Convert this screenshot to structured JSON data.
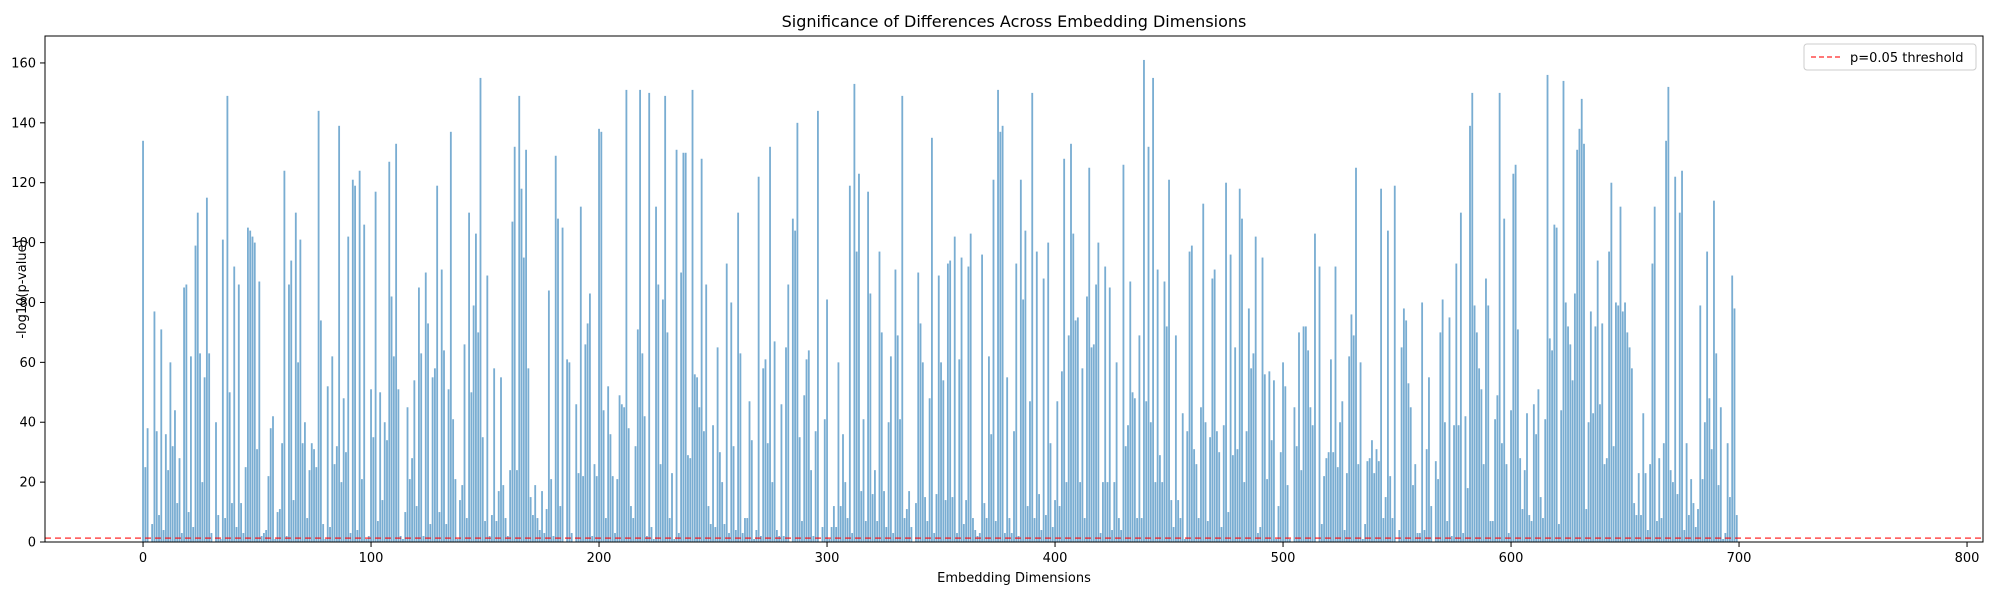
{
  "chart_data": {
    "type": "bar",
    "title": "Significance of Differences Across Embedding Dimensions",
    "xlabel": "Embedding Dimensions",
    "ylabel": "-log10(p-value)",
    "xlim": [
      -43,
      807
    ],
    "ylim": [
      0,
      169
    ],
    "x_ticks": [
      0,
      100,
      200,
      300,
      400,
      500,
      600,
      700,
      800
    ],
    "y_ticks": [
      0,
      20,
      40,
      60,
      80,
      100,
      120,
      140,
      160
    ],
    "grid": false,
    "legend_position": "top-right",
    "n_bars": 768,
    "bar_color": "#1f77b4",
    "bar_alpha": 0.6,
    "threshold": {
      "label": "p=0.05 threshold",
      "value": 1.301,
      "color": "#ff0000",
      "style": "dashed"
    },
    "values": [
      134,
      25,
      38,
      0,
      6,
      77,
      37,
      9,
      71,
      4,
      36,
      24,
      60,
      32,
      44,
      13,
      28,
      3,
      85,
      86,
      10,
      62,
      5,
      99,
      110,
      63,
      20,
      55,
      115,
      63,
      3,
      0,
      40,
      9,
      1,
      101,
      8,
      149,
      50,
      13,
      92,
      5,
      86,
      13,
      3,
      25,
      105,
      104,
      102,
      100,
      31,
      87,
      2,
      3,
      4,
      22,
      38,
      42,
      1,
      10,
      11,
      33,
      124,
      2,
      86,
      94,
      14,
      110,
      60,
      101,
      33,
      40,
      8,
      24,
      33,
      31,
      25,
      144,
      74,
      6,
      1,
      52,
      5,
      62,
      26,
      32,
      139,
      20,
      48,
      30,
      102,
      3,
      121,
      119,
      4,
      124,
      21,
      106,
      1,
      2,
      51,
      35,
      117,
      7,
      50,
      14,
      40,
      34,
      127,
      82,
      62,
      133,
      51,
      2,
      1,
      10,
      45,
      21,
      28,
      54,
      12,
      85,
      63,
      2,
      90,
      73,
      6,
      55,
      58,
      119,
      10,
      91,
      64,
      6,
      51,
      137,
      41,
      21,
      1,
      14,
      19,
      66,
      8,
      110,
      50,
      79,
      103,
      70,
      155,
      35,
      7,
      89,
      2,
      9,
      58,
      7,
      17,
      55,
      19,
      8,
      2,
      24,
      107,
      132,
      24,
      149,
      118,
      95,
      131,
      58,
      15,
      9,
      19,
      8,
      4,
      17,
      3,
      11,
      84,
      21,
      2,
      129,
      108,
      12,
      105,
      0,
      61,
      60,
      3,
      0,
      46,
      23,
      112,
      22,
      66,
      73,
      83,
      2,
      26,
      22,
      138,
      137,
      44,
      8,
      52,
      36,
      22,
      3,
      21,
      49,
      46,
      45,
      151,
      38,
      12,
      8,
      32,
      71,
      151,
      63,
      42,
      2,
      150,
      5,
      1,
      112,
      86,
      26,
      81,
      149,
      70,
      8,
      23,
      1,
      131,
      3,
      90,
      130,
      130,
      29,
      28,
      151,
      56,
      55,
      45,
      128,
      37,
      86,
      12,
      6,
      39,
      5,
      65,
      30,
      20,
      6,
      93,
      3,
      80,
      32,
      4,
      110,
      63,
      3,
      8,
      8,
      47,
      34,
      1,
      4,
      122,
      2,
      58,
      61,
      33,
      132,
      20,
      67,
      4,
      2,
      46,
      2,
      65,
      86,
      0,
      108,
      104,
      140,
      35,
      7,
      49,
      61,
      64,
      24,
      2,
      37,
      144,
      0,
      5,
      41,
      81,
      1,
      5,
      12,
      5,
      60,
      12,
      36,
      20,
      8,
      119,
      3,
      153,
      97,
      123,
      17,
      41,
      7,
      117,
      83,
      16,
      24,
      7,
      97,
      70,
      17,
      5,
      40,
      62,
      3,
      91,
      69,
      41,
      149,
      8,
      11,
      17,
      5,
      0,
      13,
      90,
      73,
      60,
      15,
      7,
      48,
      135,
      3,
      16,
      89,
      60,
      54,
      14,
      93,
      94,
      15,
      102,
      3,
      61,
      95,
      6,
      14,
      92,
      103,
      8,
      4,
      2,
      3,
      96,
      13,
      8,
      62,
      36,
      121,
      7,
      151,
      137,
      139,
      3,
      55,
      8,
      3,
      37,
      93,
      2,
      121,
      81,
      104,
      12,
      47,
      150,
      8,
      97,
      16,
      4,
      88,
      9,
      100,
      33,
      5,
      14,
      47,
      12,
      57,
      128,
      20,
      69,
      133,
      103,
      74,
      75,
      20,
      58,
      8,
      82,
      125,
      65,
      66,
      86,
      100,
      3,
      20,
      92,
      20,
      85,
      4,
      20,
      60,
      8,
      4,
      126,
      32,
      39,
      87,
      50,
      48,
      8,
      69,
      8,
      161,
      47,
      132,
      40,
      155,
      20,
      91,
      29,
      20,
      87,
      72,
      121,
      14,
      5,
      69,
      14,
      8,
      43,
      1,
      37,
      97,
      99,
      31,
      26,
      8,
      45,
      113,
      40,
      7,
      35,
      88,
      91,
      37,
      30,
      5,
      39,
      120,
      10,
      96,
      29,
      65,
      31,
      118,
      108,
      20,
      37,
      78,
      58,
      63,
      102,
      3,
      5,
      95,
      56,
      21,
      57,
      34,
      54,
      1,
      12,
      30,
      60,
      52,
      19,
      1,
      0,
      45,
      32,
      70,
      24,
      72,
      72,
      64,
      45,
      39,
      103,
      0,
      92,
      6,
      22,
      28,
      30,
      61,
      30,
      92,
      25,
      40,
      47,
      4,
      23,
      62,
      76,
      69,
      125,
      26,
      60,
      1,
      6,
      27,
      28,
      34,
      23,
      31,
      27,
      118,
      8,
      15,
      104,
      22,
      8,
      119,
      0,
      4,
      65,
      78,
      74,
      53,
      45,
      19,
      26,
      3,
      3,
      80,
      4,
      31,
      55,
      12,
      0,
      27,
      21,
      70,
      81,
      40,
      7,
      75,
      2,
      39,
      93,
      39,
      110,
      3,
      42,
      18,
      139,
      150,
      79,
      70,
      58,
      51,
      26,
      88,
      79,
      7,
      7,
      41,
      49,
      150,
      33,
      108,
      26,
      3,
      44,
      123,
      126,
      71,
      28,
      11,
      24,
      43,
      9,
      7,
      46,
      36,
      51,
      15,
      8,
      41,
      156,
      68,
      64,
      106,
      105,
      6,
      44,
      154,
      80,
      72,
      66,
      54,
      83,
      131,
      138,
      148,
      133,
      11,
      40,
      77,
      43,
      72,
      94,
      46,
      73,
      26,
      28,
      97,
      120,
      32,
      80,
      79,
      112,
      77,
      80,
      70,
      65,
      58,
      13,
      9,
      23,
      9,
      43,
      23,
      4,
      26,
      93,
      112,
      7,
      28,
      8,
      33,
      134,
      152,
      24,
      20,
      122,
      16,
      110,
      124,
      4,
      33,
      9,
      21,
      13,
      5,
      11,
      79,
      21,
      40,
      97,
      48,
      31,
      114,
      63,
      19,
      45,
      1,
      3,
      33,
      15,
      89,
      78,
      9
    ]
  }
}
